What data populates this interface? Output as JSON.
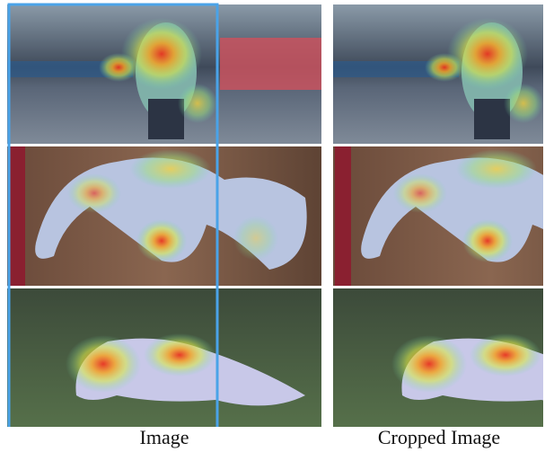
{
  "captions": {
    "left": "Image",
    "right": "Cropped Image"
  }
}
